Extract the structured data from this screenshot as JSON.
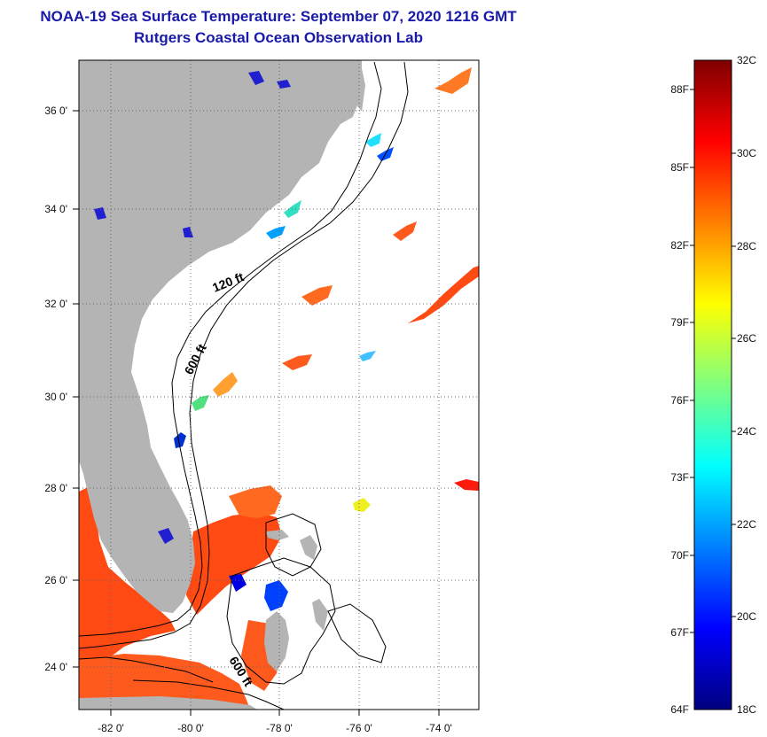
{
  "title": {
    "line1": "NOAA-19 Sea Surface Temperature:  September 07, 2020 1216 GMT",
    "line2": "Rutgers Coastal Ocean Observation Lab"
  },
  "map": {
    "lon_range": [
      -83,
      -73
    ],
    "lat_range": [
      23,
      37.1
    ],
    "lon_ticks": [
      {
        "value": -82,
        "label": "-82 0'"
      },
      {
        "value": -80,
        "label": "-80 0'"
      },
      {
        "value": -78,
        "label": "-78 0'"
      },
      {
        "value": -76,
        "label": "-76 0'"
      },
      {
        "value": -74,
        "label": "-74 0'"
      }
    ],
    "lat_ticks": [
      {
        "value": 24,
        "label": "24 0'"
      },
      {
        "value": 26,
        "label": "26 0'"
      },
      {
        "value": 28,
        "label": "28 0'"
      },
      {
        "value": 30,
        "label": "30 0'"
      },
      {
        "value": 32,
        "label": "32 0'"
      },
      {
        "value": 34,
        "label": "34 0'"
      },
      {
        "value": 36,
        "label": "36 0'"
      }
    ],
    "contour_labels": [
      "120 ft",
      "600 ft",
      "600 ft"
    ],
    "land_color": "#b4b4b4",
    "grid": "dotted"
  },
  "colorbar": {
    "min_c": 18,
    "max_c": 32,
    "celsius_labels": [
      "32C",
      "30C",
      "28C",
      "26C",
      "24C",
      "22C",
      "20C",
      "18C"
    ],
    "fahrenheit_labels": [
      "88F",
      "85F",
      "82F",
      "79F",
      "76F",
      "73F",
      "70F",
      "67F",
      "64F"
    ],
    "colors": [
      "#00007f",
      "#0000ff",
      "#007fff",
      "#00ffff",
      "#7fff7f",
      "#ffff00",
      "#ff7f00",
      "#ff0000",
      "#7f0000"
    ]
  }
}
